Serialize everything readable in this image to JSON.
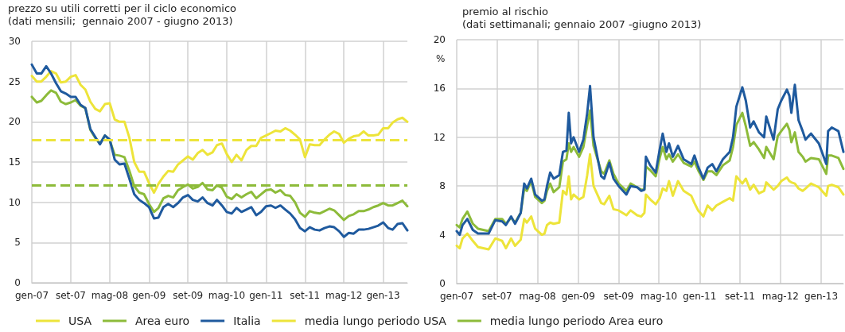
{
  "chart_data": [
    {
      "type": "line",
      "title": "prezzo su utili corretti per il ciclo economico",
      "subtitle": "(dati mensili;  gennaio 2007 - giugno 2013)",
      "x": [
        "2007-01",
        "2007-02",
        "2007-03",
        "2007-04",
        "2007-05",
        "2007-06",
        "2007-07",
        "2007-08",
        "2007-09",
        "2007-10",
        "2007-11",
        "2007-12",
        "2008-01",
        "2008-02",
        "2008-03",
        "2008-04",
        "2008-05",
        "2008-06",
        "2008-07",
        "2008-08",
        "2008-09",
        "2008-10",
        "2008-11",
        "2008-12",
        "2009-01",
        "2009-02",
        "2009-03",
        "2009-04",
        "2009-05",
        "2009-06",
        "2009-07",
        "2009-08",
        "2009-09",
        "2009-10",
        "2009-11",
        "2009-12",
        "2010-01",
        "2010-02",
        "2010-03",
        "2010-04",
        "2010-05",
        "2010-06",
        "2010-07",
        "2010-08",
        "2010-09",
        "2010-10",
        "2010-11",
        "2010-12",
        "2011-01",
        "2011-02",
        "2011-03",
        "2011-04",
        "2011-05",
        "2011-06",
        "2011-07",
        "2011-08",
        "2011-09",
        "2011-10",
        "2011-11",
        "2011-12",
        "2012-01",
        "2012-02",
        "2012-03",
        "2012-04",
        "2012-05",
        "2012-06",
        "2012-07",
        "2012-08",
        "2012-09",
        "2012-10",
        "2012-11",
        "2012-12",
        "2013-01",
        "2013-02",
        "2013-03",
        "2013-04",
        "2013-05",
        "2013-06"
      ],
      "series": [
        {
          "name": "USA",
          "color": "#ede43a",
          "values": [
            25.7,
            25.0,
            25.0,
            25.6,
            26.3,
            26.0,
            24.9,
            25.0,
            25.6,
            25.8,
            24.6,
            24.0,
            22.5,
            21.6,
            21.3,
            22.2,
            22.3,
            20.3,
            20.0,
            20.0,
            18.0,
            15.0,
            13.8,
            13.8,
            12.4,
            11.2,
            12.3,
            13.2,
            13.9,
            13.8,
            14.7,
            15.2,
            15.7,
            15.3,
            16.1,
            16.5,
            15.9,
            16.2,
            17.1,
            17.3,
            16.0,
            15.0,
            15.9,
            15.2,
            16.5,
            17.0,
            17.0,
            18.0,
            18.3,
            18.6,
            18.9,
            18.8,
            19.2,
            18.9,
            18.4,
            17.8,
            15.6,
            17.2,
            17.1,
            17.1,
            17.8,
            18.4,
            18.8,
            18.5,
            17.4,
            17.9,
            18.2,
            18.3,
            18.8,
            18.3,
            18.3,
            18.4,
            19.2,
            19.2,
            19.9,
            20.3,
            20.5,
            20.0
          ]
        },
        {
          "name": "Area euro",
          "color": "#8dbb3a",
          "values": [
            23.1,
            22.4,
            22.6,
            23.3,
            23.9,
            23.6,
            22.5,
            22.2,
            22.4,
            22.7,
            22.0,
            21.7,
            19.0,
            18.0,
            17.3,
            18.3,
            17.7,
            15.9,
            15.8,
            15.6,
            13.9,
            12.0,
            11.2,
            11.0,
            9.8,
            8.8,
            9.3,
            10.5,
            10.8,
            10.6,
            11.5,
            11.9,
            12.2,
            11.7,
            11.9,
            12.4,
            11.6,
            11.5,
            12.1,
            11.8,
            10.7,
            10.4,
            11.0,
            10.6,
            11.0,
            11.3,
            10.5,
            11.0,
            11.5,
            11.6,
            11.2,
            11.5,
            10.9,
            10.8,
            10.0,
            8.7,
            8.2,
            8.9,
            8.7,
            8.6,
            8.9,
            9.2,
            9.0,
            8.4,
            7.8,
            8.3,
            8.5,
            8.9,
            8.9,
            9.1,
            9.4,
            9.6,
            9.9,
            9.6,
            9.6,
            9.9,
            10.2,
            9.5
          ]
        },
        {
          "name": "Italia",
          "color": "#1f5a9e",
          "values": [
            27.1,
            26.0,
            26.0,
            26.9,
            26.0,
            24.8,
            23.8,
            23.5,
            23.1,
            23.1,
            22.1,
            21.7,
            19.1,
            18.1,
            17.2,
            18.3,
            17.8,
            15.3,
            14.7,
            14.8,
            12.9,
            11.0,
            10.3,
            9.9,
            9.4,
            8.0,
            8.1,
            9.4,
            9.8,
            9.4,
            9.9,
            10.6,
            10.9,
            10.3,
            10.1,
            10.6,
            9.9,
            9.6,
            10.3,
            9.6,
            8.8,
            8.6,
            9.3,
            8.8,
            9.1,
            9.4,
            8.4,
            8.8,
            9.5,
            9.6,
            9.3,
            9.6,
            9.1,
            8.6,
            7.9,
            6.8,
            6.4,
            6.9,
            6.6,
            6.5,
            6.8,
            7.0,
            6.9,
            6.4,
            5.7,
            6.2,
            6.1,
            6.6,
            6.6,
            6.7,
            6.9,
            7.1,
            7.5,
            6.8,
            6.6,
            7.3,
            7.4,
            6.5
          ]
        }
      ],
      "ref_lines": [
        {
          "axis": "y",
          "value": 17.7,
          "label": "media lungo periodo USA",
          "color": "#ede43a",
          "line_style": "dashed"
        },
        {
          "axis": "y",
          "value": 12.1,
          "label": "media lungo periodo Area euro",
          "color": "#8dbb3a",
          "line_style": "dashed"
        }
      ],
      "xlim": [
        "2007-01",
        "2013-06"
      ],
      "xticks": [
        {
          "value": "2007-01",
          "label": "gen-07"
        },
        {
          "value": "2007-09",
          "label": "set-07"
        },
        {
          "value": "2008-05",
          "label": "mag-08"
        },
        {
          "value": "2009-01",
          "label": "gen-09"
        },
        {
          "value": "2009-09",
          "label": "set-09"
        },
        {
          "value": "2010-05",
          "label": "mag-10"
        },
        {
          "value": "2011-01",
          "label": "gen-11"
        },
        {
          "value": "2011-09",
          "label": "set-11"
        },
        {
          "value": "2012-05",
          "label": "mag-12"
        },
        {
          "value": "2013-01",
          "label": "gen-13"
        }
      ],
      "ylim": [
        0,
        30
      ],
      "yticks": [
        0,
        5,
        10,
        15,
        20,
        25,
        30
      ],
      "grid": true,
      "legend": "bottom",
      "line_style": "solid",
      "marker": "none"
    },
    {
      "type": "line",
      "title": "premio al rischio",
      "subtitle": "(dati settimanali; gennaio 2007 -giugno 2013)",
      "ylabel": "%",
      "x": [
        "2007-01-01",
        "2007-01-19",
        "2007-02-05",
        "2007-03-06",
        "2007-04-08",
        "2007-05-09",
        "2007-07-12",
        "2007-08-21",
        "2007-10-01",
        "2007-10-24",
        "2007-11-24",
        "2007-12-18",
        "2008-01-21",
        "2008-02-11",
        "2008-02-27",
        "2008-03-24",
        "2008-04-17",
        "2008-05-27",
        "2008-06-12",
        "2008-06-27",
        "2008-07-16",
        "2008-08-06",
        "2008-09-09",
        "2008-10-01",
        "2008-10-22",
        "2008-11-05",
        "2008-11-19",
        "2008-12-04",
        "2009-01-06",
        "2009-02-01",
        "2009-02-24",
        "2009-03-13",
        "2009-04-03",
        "2009-05-19",
        "2009-06-06",
        "2009-07-07",
        "2009-08-01",
        "2009-09-01",
        "2009-10-18",
        "2009-11-12",
        "2009-12-21",
        "2010-01-15",
        "2010-02-03",
        "2010-02-12",
        "2010-03-10",
        "2010-04-12",
        "2010-05-06",
        "2010-05-24",
        "2010-06-15",
        "2010-07-01",
        "2010-07-24",
        "2010-08-24",
        "2010-09-27",
        "2010-11-12",
        "2010-12-01",
        "2010-12-23",
        "2011-01-24",
        "2011-02-18",
        "2011-03-18",
        "2011-04-12",
        "2011-05-21",
        "2011-07-01",
        "2011-07-21",
        "2011-08-10",
        "2011-09-15",
        "2011-10-06",
        "2011-11-01",
        "2011-11-22",
        "2011-12-24",
        "2012-01-24",
        "2012-02-06",
        "2012-03-21",
        "2012-04-15",
        "2012-05-06",
        "2012-06-09",
        "2012-06-24",
        "2012-07-06",
        "2012-07-27",
        "2012-08-18",
        "2012-09-12",
        "2012-09-29",
        "2012-11-01",
        "2012-12-18",
        "2013-02-01",
        "2013-02-12",
        "2013-03-06",
        "2013-04-15",
        "2013-05-15"
      ],
      "series": [
        {
          "color": "#ede43a",
          "values": [
            3.1,
            2.9,
            3.7,
            4.1,
            3.5,
            3.0,
            2.8,
            3.7,
            3.5,
            2.9,
            3.7,
            3.1,
            3.6,
            5.3,
            5.0,
            5.5,
            4.5,
            4.0,
            4.1,
            4.8,
            5.0,
            4.9,
            5.0,
            7.6,
            7.3,
            8.8,
            6.9,
            7.3,
            6.9,
            7.1,
            8.9,
            10.6,
            8.0,
            6.6,
            6.5,
            7.2,
            6.1,
            6.0,
            5.6,
            6.0,
            5.6,
            5.5,
            5.8,
            7.3,
            6.9,
            6.5,
            7.0,
            7.8,
            7.6,
            8.4,
            7.2,
            8.4,
            7.6,
            7.2,
            6.6,
            6.0,
            5.5,
            6.4,
            6.0,
            6.4,
            6.7,
            7.0,
            6.8,
            8.8,
            8.2,
            8.6,
            7.7,
            8.1,
            7.4,
            7.6,
            8.3,
            7.7,
            8.0,
            8.4,
            8.7,
            8.4,
            8.3,
            8.2,
            7.8,
            7.6,
            7.8,
            8.2,
            7.9,
            7.2,
            8.0,
            8.1,
            7.9,
            7.3
          ]
        },
        {
          "color": "#8dbb3a",
          "values": [
            4.8,
            4.6,
            5.3,
            5.9,
            4.9,
            4.5,
            4.3,
            5.3,
            5.3,
            4.9,
            5.4,
            5.0,
            5.8,
            7.8,
            7.6,
            8.4,
            7.1,
            6.6,
            6.8,
            7.6,
            8.2,
            7.5,
            7.9,
            10.0,
            10.2,
            11.5,
            10.8,
            11.2,
            10.4,
            11.2,
            13.0,
            14.2,
            11.3,
            9.2,
            9.0,
            10.1,
            9.0,
            8.2,
            7.6,
            8.2,
            7.9,
            7.7,
            7.7,
            9.6,
            9.3,
            8.8,
            10.3,
            11.2,
            10.2,
            10.6,
            10.0,
            10.6,
            9.9,
            9.6,
            10.0,
            9.3,
            8.5,
            9.2,
            9.2,
            8.9,
            9.7,
            10.1,
            11.2,
            13.0,
            14.0,
            12.9,
            11.3,
            11.6,
            11.0,
            10.3,
            11.2,
            10.2,
            12.1,
            12.5,
            13.1,
            12.6,
            11.6,
            12.4,
            10.8,
            10.4,
            10.0,
            10.3,
            10.2,
            9.0,
            10.5,
            10.5,
            10.3,
            9.4
          ]
        },
        {
          "color": "#1f5a9e",
          "values": [
            4.3,
            4.0,
            4.8,
            5.3,
            4.4,
            4.1,
            4.1,
            5.2,
            5.1,
            4.8,
            5.5,
            4.9,
            5.8,
            8.2,
            7.8,
            8.6,
            7.3,
            6.8,
            6.9,
            8.0,
            9.1,
            8.6,
            8.9,
            10.8,
            10.9,
            14.0,
            11.5,
            12.0,
            10.8,
            11.8,
            14.0,
            16.2,
            12.0,
            8.8,
            8.6,
            9.9,
            8.6,
            8.0,
            7.3,
            8.0,
            7.9,
            7.6,
            7.7,
            10.4,
            9.7,
            9.1,
            11.0,
            12.3,
            10.8,
            11.5,
            10.4,
            11.3,
            10.2,
            9.8,
            10.5,
            9.6,
            8.6,
            9.5,
            9.8,
            9.2,
            10.2,
            10.8,
            12.0,
            14.5,
            16.1,
            15.0,
            12.8,
            13.3,
            12.4,
            12.0,
            13.7,
            11.8,
            14.3,
            15.0,
            15.9,
            15.4,
            14.0,
            16.3,
            13.4,
            12.5,
            11.8,
            12.3,
            11.5,
            9.8,
            12.5,
            12.8,
            12.5,
            10.8
          ]
        }
      ],
      "xlim": [
        "2007-01",
        "2013-05-15"
      ],
      "xticks": [
        {
          "value": "2007-01",
          "label": "gen-07"
        },
        {
          "value": "2007-09",
          "label": "set-07"
        },
        {
          "value": "2008-05",
          "label": "mag-08"
        },
        {
          "value": "2009-01",
          "label": "gen-09"
        },
        {
          "value": "2009-09",
          "label": "set-09"
        },
        {
          "value": "2010-05",
          "label": "mag-10"
        },
        {
          "value": "2011-01",
          "label": "gen-11"
        },
        {
          "value": "2011-09",
          "label": "set-11"
        },
        {
          "value": "2012-05",
          "label": "mag-12"
        },
        {
          "value": "2013-01",
          "label": "gen-13"
        }
      ],
      "ylim": [
        0,
        20
      ],
      "yticks": [
        0,
        4,
        8,
        12,
        16,
        20
      ],
      "grid": true,
      "line_style": "solid",
      "marker": "none"
    }
  ]
}
